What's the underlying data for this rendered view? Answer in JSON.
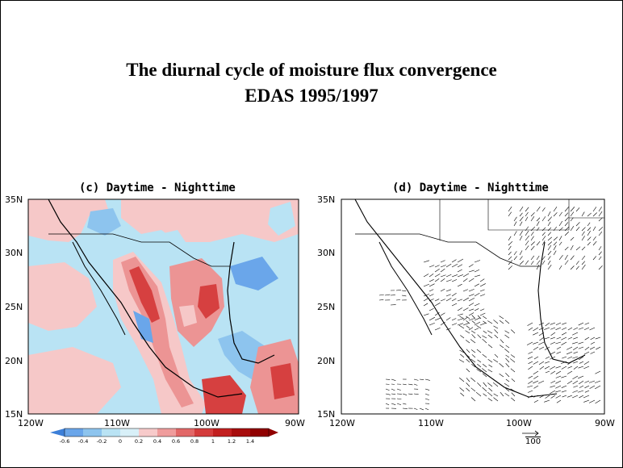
{
  "slide": {
    "title_line1": "The diurnal cycle of moisture flux convergence",
    "title_line2": "EDAS 1995/1997"
  },
  "panel_c": {
    "title": "(c) Daytime - Nighttime",
    "lat_labels": [
      "35N",
      "30N",
      "25N",
      "20N",
      "15N"
    ],
    "lon_labels": [
      "120W",
      "110W",
      "100W",
      "90W"
    ]
  },
  "panel_d": {
    "title": "(d) Daytime - Nighttime",
    "lat_labels": [
      "35N",
      "30N",
      "25N",
      "20N",
      "15N"
    ],
    "lon_labels": [
      "120W",
      "110W",
      "100W",
      "90W"
    ],
    "reference_vector_label": "100"
  },
  "colorbar": {
    "labels": [
      "-0.6",
      "-0.4",
      "-0.2",
      "0",
      "0.2",
      "0.4",
      "0.6",
      "0.8",
      "1",
      "1.2",
      "1.4"
    ],
    "colors": [
      "#3c7fd8",
      "#6aa6ea",
      "#a9d4f2",
      "#d8f0f8",
      "#f7caca",
      "#ef9c9c",
      "#e26868",
      "#d43c3c",
      "#c21f1f",
      "#a80d0d",
      "#900000"
    ]
  },
  "map_colors": {
    "negative_strong": "#6aa6ea",
    "negative_weak": "#b9e3f4",
    "positive_weak": "#f6c8c8",
    "positive_mid": "#ec9494",
    "positive_strong": "#d64040"
  }
}
